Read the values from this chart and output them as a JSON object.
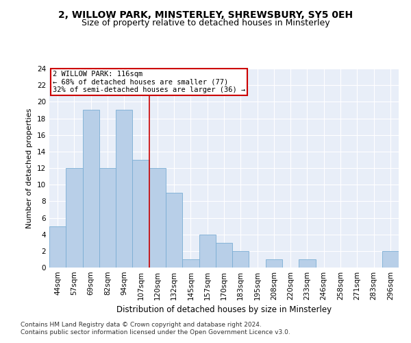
{
  "title1": "2, WILLOW PARK, MINSTERLEY, SHREWSBURY, SY5 0EH",
  "title2": "Size of property relative to detached houses in Minsterley",
  "xlabel": "Distribution of detached houses by size in Minsterley",
  "ylabel": "Number of detached properties",
  "categories": [
    "44sqm",
    "57sqm",
    "69sqm",
    "82sqm",
    "94sqm",
    "107sqm",
    "120sqm",
    "132sqm",
    "145sqm",
    "157sqm",
    "170sqm",
    "183sqm",
    "195sqm",
    "208sqm",
    "220sqm",
    "233sqm",
    "246sqm",
    "258sqm",
    "271sqm",
    "283sqm",
    "296sqm"
  ],
  "values": [
    5,
    12,
    19,
    12,
    19,
    13,
    12,
    9,
    1,
    4,
    3,
    2,
    0,
    1,
    0,
    1,
    0,
    0,
    0,
    0,
    2
  ],
  "bar_color": "#b8cfe8",
  "bar_edge_color": "#7aadd4",
  "property_line_x": 6.5,
  "property_line_color": "#cc0000",
  "annotation_text": "2 WILLOW PARK: 116sqm\n← 68% of detached houses are smaller (77)\n32% of semi-detached houses are larger (36) →",
  "annotation_box_color": "#cc0000",
  "annotation_text_fontsize": 7.5,
  "ylim": [
    0,
    24
  ],
  "yticks": [
    0,
    2,
    4,
    6,
    8,
    10,
    12,
    14,
    16,
    18,
    20,
    22,
    24
  ],
  "background_color": "#e8eef8",
  "grid_color": "#ffffff",
  "footer1": "Contains HM Land Registry data © Crown copyright and database right 2024.",
  "footer2": "Contains public sector information licensed under the Open Government Licence v3.0.",
  "title1_fontsize": 10,
  "title2_fontsize": 9,
  "xlabel_fontsize": 8.5,
  "ylabel_fontsize": 8,
  "tick_fontsize": 7.5,
  "footer_fontsize": 6.5
}
